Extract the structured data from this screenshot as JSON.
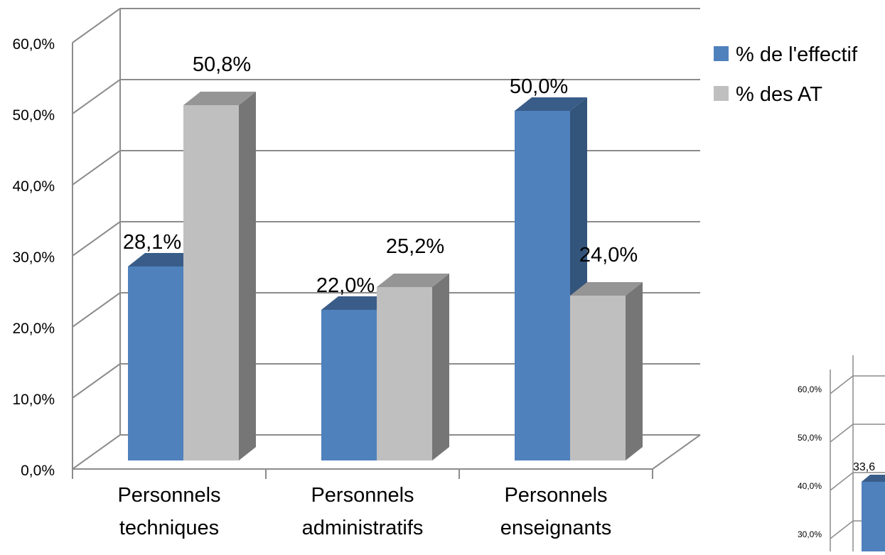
{
  "chart_data": [
    {
      "type": "bar",
      "style": "3d-clustered-column",
      "categories": [
        [
          "Personnels",
          "techniques"
        ],
        [
          "Personnels",
          "administratifs"
        ],
        [
          "Personnels",
          "enseignants"
        ]
      ],
      "series": [
        {
          "name": "% de l'effectif",
          "values": [
            28.1,
            22.0,
            50.0
          ],
          "labels": [
            "28,1%",
            "22,0%",
            "50,0%"
          ],
          "color": "#4f81bd"
        },
        {
          "name": "% des AT",
          "values": [
            50.8,
            25.2,
            24.0
          ],
          "labels": [
            "50,8%",
            "25,2%",
            "24,0%"
          ],
          "color": "#bfbfbf"
        }
      ],
      "yticks": [
        "0,0%",
        "10,0%",
        "20,0%",
        "30,0%",
        "40,0%",
        "50,0%",
        "60,0%"
      ],
      "ylim": [
        0,
        60
      ],
      "grid": true,
      "legend": "right"
    },
    {
      "type": "bar",
      "partial": true,
      "yticks": [
        "30,0%",
        "40,0%",
        "50,0%",
        "60,0%"
      ],
      "visible_labels": [
        "33,6"
      ],
      "color": "#4f81bd"
    }
  ]
}
